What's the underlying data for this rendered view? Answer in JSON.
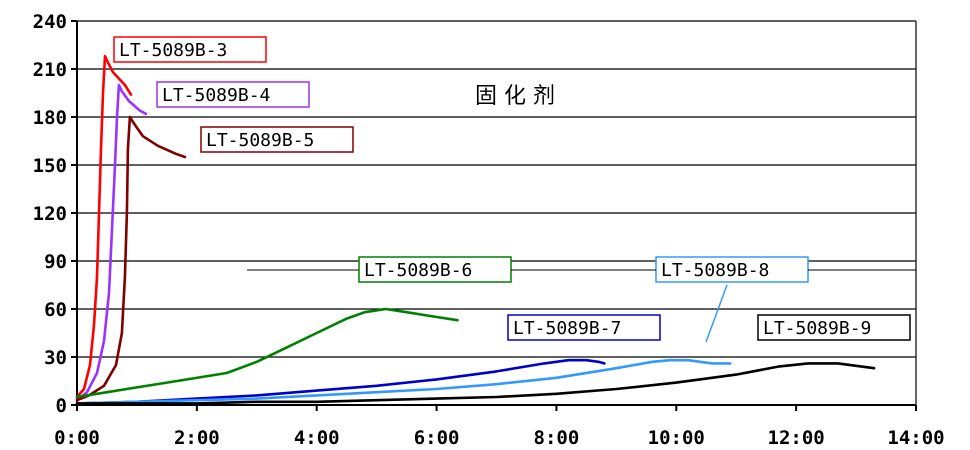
{
  "chart_data": {
    "type": "line",
    "title": "固 化 剂",
    "xlabel": "",
    "ylabel": "",
    "x_unit": "h:mm",
    "xlim": [
      0,
      14
    ],
    "ylim": [
      0,
      240
    ],
    "x_ticks": [
      0,
      2,
      4,
      6,
      8,
      10,
      12,
      14
    ],
    "x_tick_labels": [
      "0:00",
      "2:00",
      "4:00",
      "6:00",
      "8:00",
      "10:00",
      "12:00",
      "14:00"
    ],
    "y_ticks": [
      0,
      30,
      60,
      90,
      120,
      150,
      180,
      210,
      240
    ],
    "y_tick_labels": [
      "0",
      "30",
      "60",
      "90",
      "120",
      "150",
      "180",
      "210",
      "240"
    ],
    "grid": "horizontal",
    "series": [
      {
        "name": "LT-5089B-3",
        "color": "#ff0000",
        "x": [
          "0:00",
          "0:07",
          "0:13",
          "0:17",
          "0:20",
          "0:22",
          "0:24",
          "0:26",
          "0:28",
          "0:31",
          "0:36",
          "0:48",
          "0:54"
        ],
        "y": [
          5,
          10,
          25,
          50,
          80,
          120,
          160,
          195,
          218,
          214,
          208,
          200,
          194
        ]
      },
      {
        "name": "LT-5089B-4",
        "color": "#9933ff",
        "x": [
          "0:00",
          "0:10",
          "0:20",
          "0:27",
          "0:32",
          "0:35",
          "0:38",
          "0:40",
          "0:42",
          "0:45",
          "0:52",
          "1:03",
          "1:09"
        ],
        "y": [
          3,
          8,
          20,
          40,
          70,
          110,
          150,
          180,
          200,
          196,
          190,
          184,
          182
        ]
      },
      {
        "name": "LT-5089B-5",
        "color": "#800000",
        "x": [
          "0:00",
          "0:12",
          "0:27",
          "0:39",
          "0:45",
          "0:48",
          "0:50",
          "0:51",
          "0:53",
          "0:57",
          "1:06",
          "1:21",
          "1:39",
          "1:48"
        ],
        "y": [
          3,
          6,
          12,
          25,
          45,
          80,
          120,
          160,
          180,
          176,
          168,
          162,
          157,
          155
        ]
      },
      {
        "name": "LT-5089B-6",
        "color": "#008000",
        "x": [
          "0:00",
          "0:30",
          "1:30",
          "2:30",
          "3:00",
          "3:30",
          "4:00",
          "4:30",
          "4:48",
          "5:09",
          "5:30",
          "6:00",
          "6:21"
        ],
        "y": [
          5,
          8,
          14,
          20,
          27,
          36,
          45,
          54,
          58,
          60,
          58,
          55,
          53
        ]
      },
      {
        "name": "LT-5089B-7",
        "color": "#0000cc",
        "x": [
          "0:00",
          "1:00",
          "2:00",
          "3:00",
          "4:00",
          "5:00",
          "6:00",
          "7:00",
          "7:48",
          "8:12",
          "8:30",
          "8:42",
          "8:48"
        ],
        "y": [
          1,
          2,
          4,
          6,
          9,
          12,
          16,
          21,
          26,
          28,
          28,
          27,
          26
        ]
      },
      {
        "name": "LT-5089B-8",
        "color": "#3399ff",
        "x": [
          "0:00",
          "1:00",
          "2:00",
          "3:00",
          "4:00",
          "5:00",
          "6:00",
          "7:00",
          "8:00",
          "9:00",
          "9:36",
          "9:54",
          "10:12",
          "10:36",
          "10:54"
        ],
        "y": [
          1,
          2,
          3,
          4,
          6,
          8,
          10,
          13,
          17,
          23,
          27,
          28,
          28,
          26,
          26
        ]
      },
      {
        "name": "LT-5089B-9",
        "color": "#000000",
        "x": [
          "0:00",
          "1:00",
          "2:00",
          "3:00",
          "4:00",
          "5:00",
          "6:00",
          "7:00",
          "8:00",
          "9:00",
          "10:00",
          "11:00",
          "11:42",
          "12:12",
          "12:42",
          "13:18"
        ],
        "y": [
          1,
          1,
          1,
          2,
          2,
          3,
          4,
          5,
          7,
          10,
          14,
          19,
          24,
          26,
          26,
          23
        ]
      }
    ],
    "annotations": [
      {
        "series": "LT-5089B-3",
        "text": "LT-5089B-3",
        "border": "#ff0000"
      },
      {
        "series": "LT-5089B-4",
        "text": "LT-5089B-4",
        "border": "#9933ff"
      },
      {
        "series": "LT-5089B-5",
        "text": "LT-5089B-5",
        "border": "#800000"
      },
      {
        "series": "LT-5089B-6",
        "text": "LT-5089B-6",
        "border": "#008000"
      },
      {
        "series": "LT-5089B-7",
        "text": "LT-5089B-7",
        "border": "#0000cc"
      },
      {
        "series": "LT-5089B-8",
        "text": "LT-5089B-8",
        "border": "#3399ff"
      },
      {
        "series": "LT-5089B-9",
        "text": "LT-5089B-9",
        "border": "#000000"
      }
    ]
  }
}
